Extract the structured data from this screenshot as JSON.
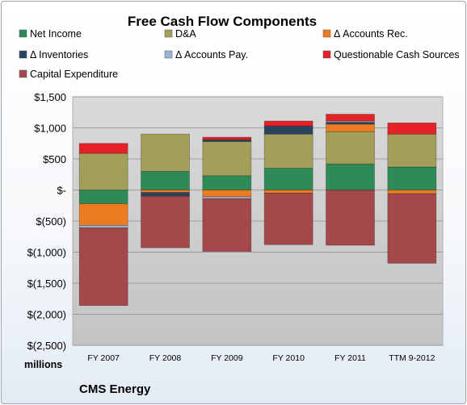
{
  "chart_data": {
    "type": "bar",
    "stacked": true,
    "title": "Free Cash Flow Components",
    "units_label": "millions",
    "company": "CMS Energy",
    "categories": [
      "FY 2007",
      "FY 2008",
      "FY 2009",
      "FY 2010",
      "FY 2011",
      "TTM 9-2012"
    ],
    "ylim": [
      -2500,
      1500
    ],
    "yticks": [
      1500,
      1000,
      500,
      0,
      -500,
      -1000,
      -1500,
      -2000,
      -2500
    ],
    "ytick_labels": [
      "$1,500",
      "$1,000",
      "$500",
      "$-",
      "$(500)",
      "$(1,000)",
      "$(1,500)",
      "$(2,000)",
      "$(2,500)"
    ],
    "legend_position": "top",
    "series": [
      {
        "name": "Net Income",
        "color": "#2e8a57",
        "values": [
          -220,
          300,
          230,
          350,
          420,
          370
        ]
      },
      {
        "name": "D&A",
        "color": "#a39f5b",
        "values": [
          590,
          600,
          550,
          550,
          520,
          530
        ]
      },
      {
        "name": "Δ Accounts Rec.",
        "color": "#ec7c21",
        "values": [
          -350,
          -40,
          -110,
          -50,
          120,
          -60
        ]
      },
      {
        "name": "Δ Inventories",
        "color": "#2a4460",
        "values": [
          0,
          -60,
          30,
          130,
          30,
          0
        ]
      },
      {
        "name": "Δ Accounts Pay.",
        "color": "#9db3d4",
        "values": [
          -40,
          0,
          -30,
          0,
          20,
          0
        ]
      },
      {
        "name": "Questionable Cash Sources",
        "color": "#e52228",
        "values": [
          160,
          0,
          40,
          80,
          110,
          180
        ]
      },
      {
        "name": "Capital Expenditure",
        "color": "#a4484b",
        "values": [
          -1250,
          -830,
          -850,
          -830,
          -890,
          -1120
        ]
      }
    ]
  }
}
